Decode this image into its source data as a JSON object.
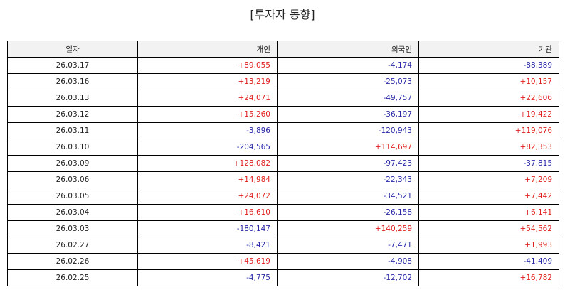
{
  "title": "[투자자 동향]",
  "colors": {
    "positive": "#e02020",
    "negative": "#2a2aa8",
    "header_bg": "#f2f2f2"
  },
  "table": {
    "headers": [
      "일자",
      "개인",
      "외국인",
      "기관"
    ],
    "rows": [
      [
        "26.03.17",
        "+89,055",
        "-4,174",
        "-88,389"
      ],
      [
        "26.03.16",
        "+13,219",
        "-25,073",
        "+10,157"
      ],
      [
        "26.03.13",
        "+24,071",
        "-49,757",
        "+22,606"
      ],
      [
        "26.03.12",
        "+15,260",
        "-36,197",
        "+19,422"
      ],
      [
        "26.03.11",
        "-3,896",
        "-120,943",
        "+119,076"
      ],
      [
        "26.03.10",
        "-204,565",
        "+114,697",
        "+82,353"
      ],
      [
        "26.03.09",
        "+128,082",
        "-97,423",
        "-37,815"
      ],
      [
        "26.03.06",
        "+14,984",
        "-22,343",
        "+7,209"
      ],
      [
        "26.03.05",
        "+24,072",
        "-34,521",
        "+7,442"
      ],
      [
        "26.03.04",
        "+16,610",
        "-26,158",
        "+6,141"
      ],
      [
        "26.03.03",
        "-180,147",
        "+140,259",
        "+54,562"
      ],
      [
        "26.02.27",
        "-8,421",
        "-7,471",
        "+1,993"
      ],
      [
        "26.02.26",
        "+45,619",
        "-4,908",
        "-41,409"
      ],
      [
        "26.02.25",
        "-4,775",
        "-12,702",
        "+16,782"
      ]
    ]
  }
}
